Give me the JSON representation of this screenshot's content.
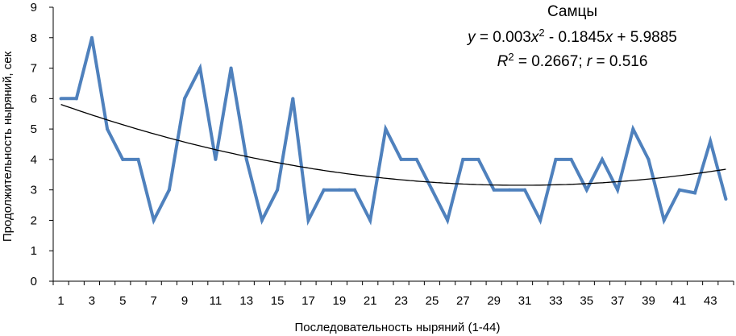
{
  "chart_data": {
    "type": "line",
    "xlabel": "Последовательность ныряний (1-44)",
    "ylabel": "Продолжительность ныряний, сек",
    "ylim": [
      0,
      9
    ],
    "yticks": [
      0,
      1,
      2,
      3,
      4,
      5,
      6,
      7,
      8,
      9
    ],
    "x": [
      1,
      2,
      3,
      4,
      5,
      6,
      7,
      8,
      9,
      10,
      11,
      12,
      13,
      14,
      15,
      16,
      17,
      18,
      19,
      20,
      21,
      22,
      23,
      24,
      25,
      26,
      27,
      28,
      29,
      30,
      31,
      32,
      33,
      34,
      35,
      36,
      37,
      38,
      39,
      40,
      41,
      42,
      43,
      44
    ],
    "xtick_labels": [
      "1",
      "3",
      "5",
      "7",
      "9",
      "11",
      "13",
      "15",
      "17",
      "19",
      "21",
      "23",
      "25",
      "27",
      "29",
      "31",
      "33",
      "35",
      "37",
      "39",
      "41",
      "43"
    ],
    "series": [
      {
        "values": [
          6,
          6,
          8,
          5,
          4,
          4,
          2,
          3,
          6,
          7,
          4,
          7,
          4,
          2,
          3,
          6,
          2,
          3,
          3,
          3,
          2,
          5,
          4,
          4,
          3,
          2,
          4,
          4,
          3,
          3,
          3,
          2,
          4,
          4,
          3,
          4,
          3,
          5,
          4,
          2,
          3,
          2.9,
          4.6,
          2.7
        ],
        "color": "#4f81bd"
      }
    ],
    "trendline": {
      "type": "polynomial",
      "order": 2,
      "coefficients": {
        "a": 0.003,
        "b": -0.1845,
        "c": 5.9885
      },
      "color": "#000000"
    },
    "annotation": {
      "title": "Самцы",
      "equation": {
        "y": "y",
        "eq1": " = 0.003",
        "x1": "x",
        "sup": "2",
        "eq2": " - 0.1845",
        "x2": "x",
        "eq3": " + 5.9885"
      },
      "stats": {
        "r2": "R",
        "sup": "2",
        "mid": " = 0.2667; ",
        "r": "r",
        "end": " = 0.516"
      }
    },
    "grid": false,
    "legend": "none"
  }
}
